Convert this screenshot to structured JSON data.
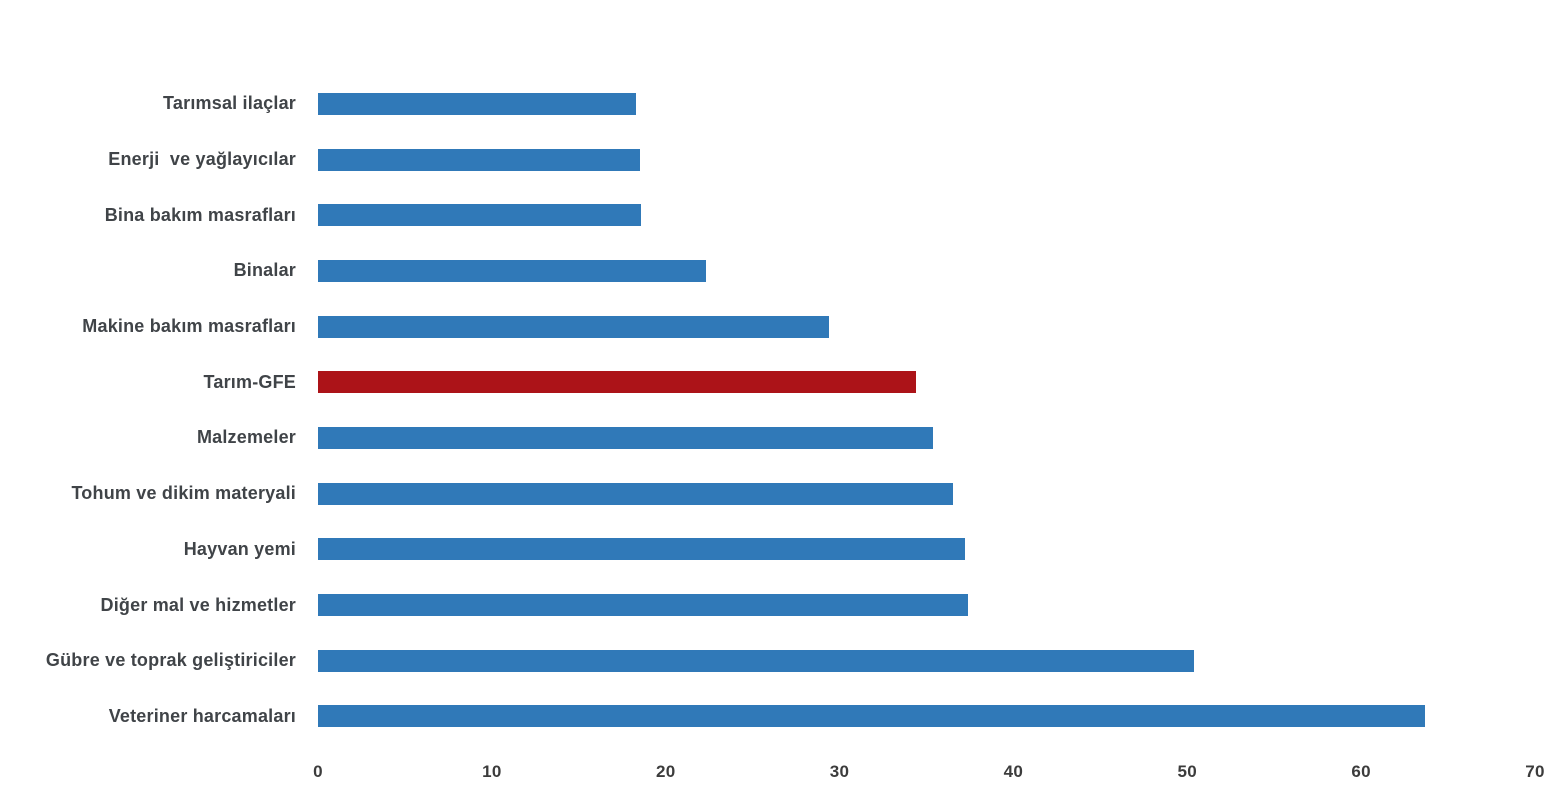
{
  "chart_data": {
    "type": "bar",
    "orientation": "horizontal",
    "title": "",
    "xlabel": "",
    "ylabel": "",
    "grid": false,
    "legend": false,
    "xlim": [
      0,
      70
    ],
    "x_ticks": [
      "0",
      "10",
      "20",
      "30",
      "40",
      "50",
      "60",
      "70"
    ],
    "x_tick_values": [
      0,
      10,
      20,
      30,
      40,
      50,
      60,
      70
    ],
    "categories": [
      "Tarımsal ilaçlar",
      "Enerji  ve yağlayıcılar",
      "Bina bakım masrafları",
      "Binalar",
      "Makine bakım masrafları",
      "Tarım-GFE",
      "Malzemeler",
      "Tohum ve dikim materyali",
      "Hayvan yemi",
      "Diğer mal ve hizmetler",
      "Gübre ve toprak geliştiriciler",
      "Veteriner harcamaları"
    ],
    "values": [
      18.3,
      18.5,
      18.6,
      22.3,
      29.4,
      34.4,
      35.4,
      36.5,
      37.2,
      37.4,
      50.4,
      63.7
    ],
    "highlight_category": "Tarım-GFE",
    "colors": {
      "bar": "#3079B8",
      "highlight": "#AC1318",
      "category_label": "#404448",
      "tick_label": "#3C3C3C",
      "background": "#FFFFFF"
    }
  }
}
